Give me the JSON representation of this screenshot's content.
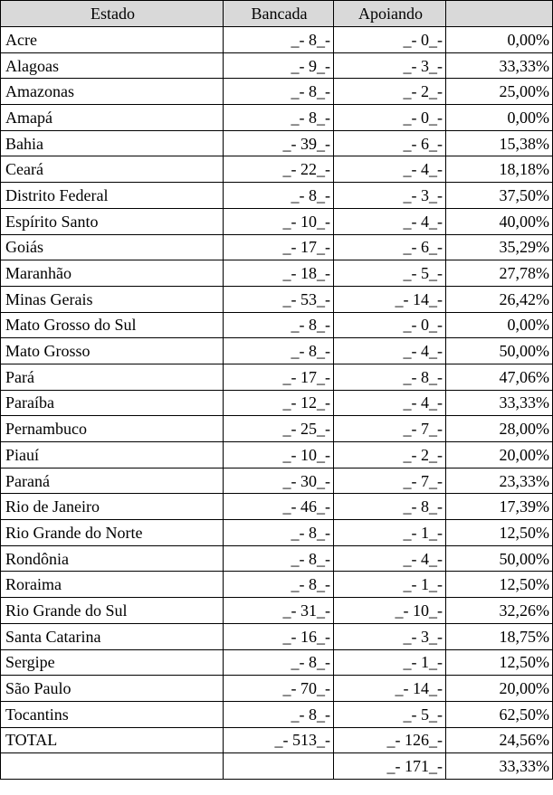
{
  "table": {
    "headers": {
      "estado": "Estado",
      "bancada": "Bancada",
      "apoiando": "Apoiando",
      "percentual": ""
    },
    "rows": [
      {
        "estado": "Acre",
        "bancada": "_-  8_-",
        "apoiando": "_-  0_-",
        "percentual": "0,00%"
      },
      {
        "estado": "Alagoas",
        "bancada": "_-  9_-",
        "apoiando": "_-  3_-",
        "percentual": "33,33%"
      },
      {
        "estado": "Amazonas",
        "bancada": "_-  8_-",
        "apoiando": "_-  2_-",
        "percentual": "25,00%"
      },
      {
        "estado": "Amapá",
        "bancada": "_-  8_-",
        "apoiando": "_-  0_-",
        "percentual": "0,00%"
      },
      {
        "estado": "Bahia",
        "bancada": "_-  39_-",
        "apoiando": "_-  6_-",
        "percentual": "15,38%"
      },
      {
        "estado": "Ceará",
        "bancada": "_-  22_-",
        "apoiando": "_-  4_-",
        "percentual": "18,18%"
      },
      {
        "estado": "Distrito Federal",
        "bancada": "_-  8_-",
        "apoiando": "_-  3_-",
        "percentual": "37,50%"
      },
      {
        "estado": "Espírito Santo",
        "bancada": "_-  10_-",
        "apoiando": "_-  4_-",
        "percentual": "40,00%"
      },
      {
        "estado": "Goiás",
        "bancada": "_-  17_-",
        "apoiando": "_-  6_-",
        "percentual": "35,29%"
      },
      {
        "estado": "Maranhão",
        "bancada": "_-  18_-",
        "apoiando": "_-  5_-",
        "percentual": "27,78%"
      },
      {
        "estado": "Minas Gerais",
        "bancada": "_-  53_-",
        "apoiando": "_-  14_-",
        "percentual": "26,42%"
      },
      {
        "estado": "Mato Grosso do Sul",
        "bancada": "_-  8_-",
        "apoiando": "_-  0_-",
        "percentual": "0,00%"
      },
      {
        "estado": "Mato Grosso",
        "bancada": "_-  8_-",
        "apoiando": "_-  4_-",
        "percentual": "50,00%"
      },
      {
        "estado": "Pará",
        "bancada": "_-  17_-",
        "apoiando": "_-  8_-",
        "percentual": "47,06%"
      },
      {
        "estado": "Paraíba",
        "bancada": "_-  12_-",
        "apoiando": "_-  4_-",
        "percentual": "33,33%"
      },
      {
        "estado": "Pernambuco",
        "bancada": "_-  25_-",
        "apoiando": "_-  7_-",
        "percentual": "28,00%"
      },
      {
        "estado": "Piauí",
        "bancada": "_-  10_-",
        "apoiando": "_-  2_-",
        "percentual": "20,00%"
      },
      {
        "estado": "Paraná",
        "bancada": "_-  30_-",
        "apoiando": "_-  7_-",
        "percentual": "23,33%"
      },
      {
        "estado": "Rio de Janeiro",
        "bancada": "_-  46_-",
        "apoiando": "_-  8_-",
        "percentual": "17,39%"
      },
      {
        "estado": "Rio Grande do Norte",
        "bancada": "_-  8_-",
        "apoiando": "_-  1_-",
        "percentual": "12,50%"
      },
      {
        "estado": "Rondônia",
        "bancada": "_-  8_-",
        "apoiando": "_-  4_-",
        "percentual": "50,00%"
      },
      {
        "estado": "Roraima",
        "bancada": "_-  8_-",
        "apoiando": "_-  1_-",
        "percentual": "12,50%"
      },
      {
        "estado": "Rio Grande do Sul",
        "bancada": "_-  31_-",
        "apoiando": "_-  10_-",
        "percentual": "32,26%"
      },
      {
        "estado": "Santa Catarina",
        "bancada": "_-  16_-",
        "apoiando": "_-  3_-",
        "percentual": "18,75%"
      },
      {
        "estado": "Sergipe",
        "bancada": "_-  8_-",
        "apoiando": "_-  1_-",
        "percentual": "12,50%"
      },
      {
        "estado": "São Paulo",
        "bancada": "_-  70_-",
        "apoiando": "_-  14_-",
        "percentual": "20,00%"
      },
      {
        "estado": "Tocantins",
        "bancada": "_-  8_-",
        "apoiando": "_-  5_-",
        "percentual": "62,50%"
      },
      {
        "estado": "TOTAL",
        "bancada": "_-  513_-",
        "apoiando": "_-  126_-",
        "percentual": "24,56%"
      },
      {
        "estado": "",
        "bancada": "",
        "apoiando": "_-  171_-",
        "percentual": "33,33%"
      }
    ]
  }
}
